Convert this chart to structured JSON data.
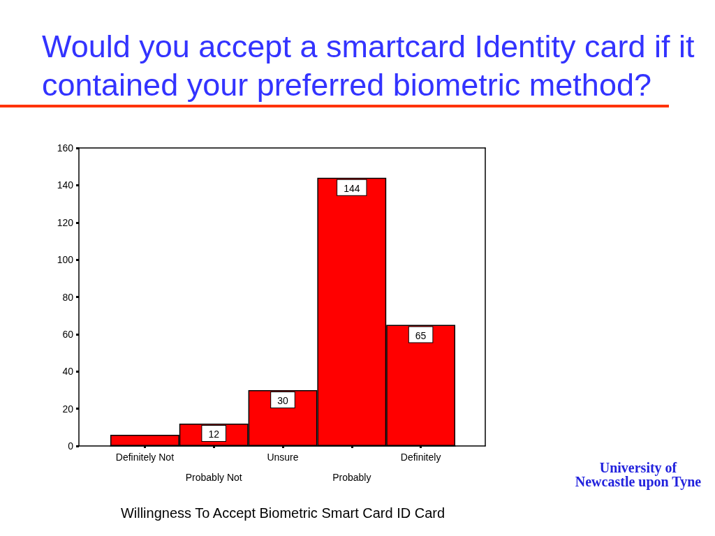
{
  "chart_data": {
    "type": "bar",
    "title": "Would you accept a smartcard Identity card if it contained your preferred biometric method?",
    "xlabel": "Willingness To Accept Biometric Smart Card ID Card",
    "categories": [
      "Definitely Not",
      "Probably Not",
      "Unsure",
      "Probably",
      "Definitely"
    ],
    "values": [
      6,
      12,
      30,
      144,
      65
    ],
    "value_labels": [
      null,
      "12",
      "30",
      "144",
      "65"
    ],
    "color": "#ff0000",
    "ylim": [
      0,
      160
    ],
    "yticks": [
      0,
      20,
      40,
      60,
      80,
      100,
      120,
      140,
      160
    ],
    "grid": false,
    "annotations": [
      "University of Newcastle upon Tyne"
    ]
  }
}
